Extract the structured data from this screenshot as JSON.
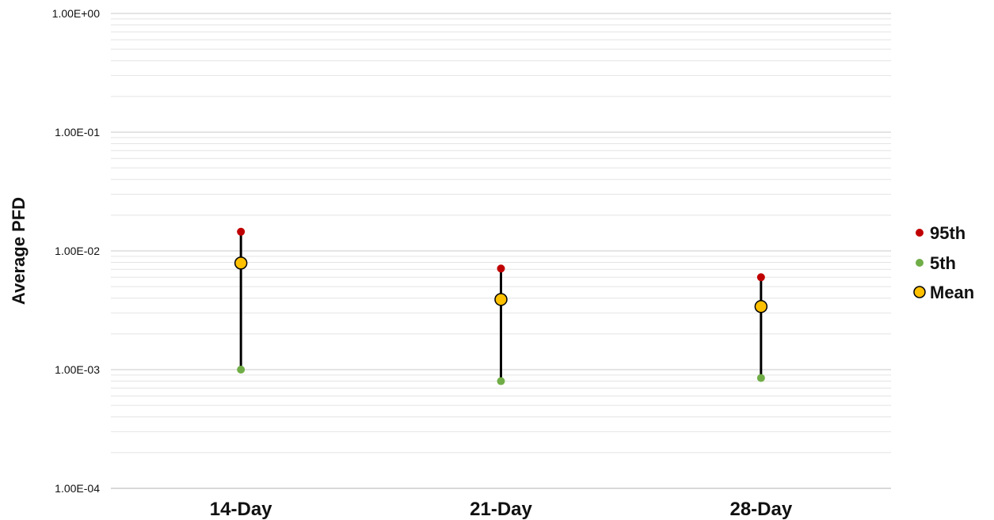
{
  "chart_data": {
    "type": "scatter",
    "ylabel": "Average PFD",
    "xlabel": "",
    "yscale": "log",
    "ylim": [
      0.0001,
      1
    ],
    "ytick_labels": [
      "1.00E+00",
      "1.00E-01",
      "1.00E-02",
      "1.00E-03",
      "1.00E-04"
    ],
    "ytick_values": [
      1,
      0.1,
      0.01,
      0.001,
      0.0001
    ],
    "categories": [
      "14-Day",
      "21-Day",
      "28-Day"
    ],
    "series": [
      {
        "name": "95th",
        "values": [
          0.0145,
          0.0071,
          0.006
        ],
        "color": "#c00000"
      },
      {
        "name": "5th",
        "values": [
          0.001,
          0.0008,
          0.00085
        ],
        "color": "#70ad47"
      },
      {
        "name": "Mean",
        "values": [
          0.0079,
          0.0039,
          0.0034
        ],
        "color": "#ffc000"
      }
    ],
    "range_line_color": "#000000",
    "grid": true,
    "minor_grid": true,
    "legend_position": "right"
  }
}
